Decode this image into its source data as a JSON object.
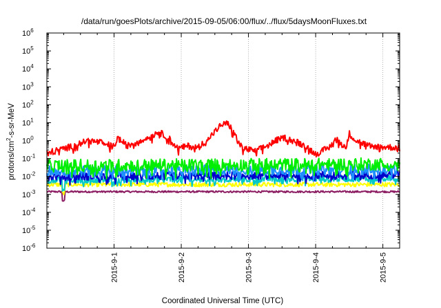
{
  "chart_data": {
    "type": "line",
    "title": "/data/run/goesPlots/archive/2015-09-05/06:00/flux/../flux/5daysMoonFluxes.txt",
    "xlabel": "Coordinated Universal Time (UTC)",
    "ylabel_parts": {
      "base": "protons/cm",
      "sup": "2",
      "rest": "-s-sr-MeV"
    },
    "y_scale": "log",
    "ylim": [
      1e-06,
      1000000.0
    ],
    "y_ticks": [
      {
        "mant": "10",
        "exp": "-6"
      },
      {
        "mant": "10",
        "exp": "-5"
      },
      {
        "mant": "10",
        "exp": "-4"
      },
      {
        "mant": "10",
        "exp": "-3"
      },
      {
        "mant": "10",
        "exp": "-2"
      },
      {
        "mant": "10",
        "exp": "-1"
      },
      {
        "mant": "10",
        "exp": "0"
      },
      {
        "mant": "10",
        "exp": "1"
      },
      {
        "mant": "10",
        "exp": "2"
      },
      {
        "mant": "10",
        "exp": "3"
      },
      {
        "mant": "10",
        "exp": "4"
      },
      {
        "mant": "10",
        "exp": "5"
      },
      {
        "mant": "10",
        "exp": "6"
      }
    ],
    "x_range_days": [
      "2015-08-31 00:00",
      "2015-09-05 06:00"
    ],
    "x_ticks": [
      "2015-9-1",
      "2015-9-2",
      "2015-9-3",
      "2015-9-4",
      "2015-9-5"
    ],
    "grid": true,
    "series": [
      {
        "color": "#ff0000",
        "base_log": -0.55,
        "noise": 0.18,
        "points": [
          [
            0,
            -0.7
          ],
          [
            0.4,
            -0.3
          ],
          [
            0.6,
            0.0
          ],
          [
            0.8,
            -0.1
          ],
          [
            1.0,
            -0.35
          ],
          [
            1.05,
            0.15
          ],
          [
            1.2,
            -0.3
          ],
          [
            1.4,
            0.05
          ],
          [
            1.55,
            0.2
          ],
          [
            1.65,
            0.5
          ],
          [
            1.8,
            0.2
          ],
          [
            1.95,
            -0.45
          ],
          [
            2.1,
            -0.3
          ],
          [
            2.25,
            -0.4
          ],
          [
            2.45,
            0.3
          ],
          [
            2.6,
            0.9
          ],
          [
            2.7,
            0.95
          ],
          [
            2.8,
            0.3
          ],
          [
            2.9,
            -0.4
          ],
          [
            3.1,
            -0.6
          ],
          [
            3.3,
            -0.25
          ],
          [
            3.5,
            0.2
          ],
          [
            3.7,
            -0.05
          ],
          [
            3.85,
            -0.3
          ],
          [
            4.0,
            -0.75
          ],
          [
            4.2,
            -0.4
          ],
          [
            4.3,
            0.1
          ],
          [
            4.45,
            -0.4
          ],
          [
            4.5,
            0.4
          ],
          [
            4.6,
            0.0
          ],
          [
            4.8,
            -0.3
          ],
          [
            5.0,
            -0.35
          ],
          [
            5.25,
            -0.4
          ]
        ]
      },
      {
        "color": "#00ee00",
        "base_log": -1.2,
        "noise": 0.35,
        "points": [
          [
            0,
            -1.4
          ],
          [
            5.25,
            -1.3
          ]
        ]
      },
      {
        "color": "#1e90ff",
        "base_log": -1.55,
        "noise": 0.3,
        "points": [
          [
            0,
            -1.7
          ],
          [
            5.25,
            -1.6
          ]
        ]
      },
      {
        "color": "#0000cc",
        "base_log": -1.85,
        "noise": 0.22,
        "points": [
          [
            0,
            -2.0
          ],
          [
            5.25,
            -1.9
          ]
        ]
      },
      {
        "color": "#00c8c8",
        "base_log": -2.05,
        "noise": 0.18,
        "points": [
          [
            0,
            -2.2
          ],
          [
            5.25,
            -2.1
          ]
        ]
      },
      {
        "color": "#ffff00",
        "base_log": -2.5,
        "noise": 0.12,
        "points": [
          [
            0,
            -2.45
          ],
          [
            5.25,
            -2.45
          ]
        ]
      },
      {
        "color": "#8b1c62",
        "base_log": -2.85,
        "noise": 0.05,
        "points": [
          [
            0,
            -2.85
          ],
          [
            5.25,
            -2.85
          ]
        ]
      }
    ]
  }
}
